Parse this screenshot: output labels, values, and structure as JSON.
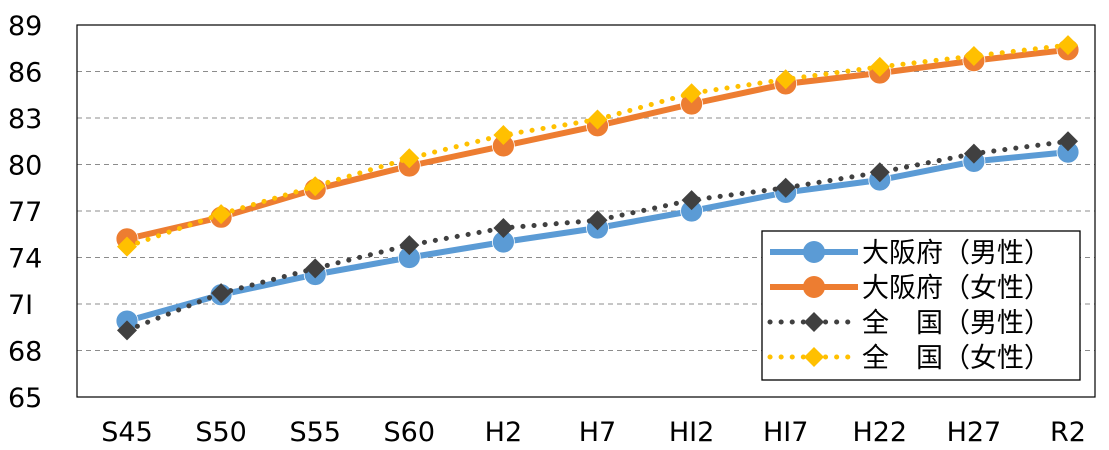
{
  "chart_data": {
    "type": "line",
    "categories": [
      "S45",
      "S50",
      "S55",
      "S60",
      "H2",
      "H7",
      "H12",
      "H17",
      "H22",
      "H27",
      "R2"
    ],
    "x_tick_labels": [
      "S45",
      "S50",
      "S55",
      "S60",
      "H2",
      "H7",
      "HI2",
      "HI7",
      "H22",
      "H27",
      "R2"
    ],
    "y_tick_labels": [
      "65",
      "68",
      "7I",
      "74",
      "77",
      "80",
      "83",
      "86",
      "89"
    ],
    "ylim": [
      65,
      89
    ],
    "y_ticks": [
      65,
      68,
      71,
      74,
      77,
      80,
      83,
      86,
      89
    ],
    "grid": true,
    "legend_position": "bottom-right",
    "title": "",
    "xlabel": "",
    "ylabel": "",
    "series": [
      {
        "name": "大阪府（男性）",
        "values": [
          69.9,
          71.6,
          72.9,
          74.0,
          75.0,
          75.9,
          77.0,
          78.2,
          79.0,
          80.2,
          80.8
        ],
        "color": "#5B9BD5",
        "line_style": "solid",
        "marker": "circle"
      },
      {
        "name": "大阪府（女性）",
        "values": [
          75.2,
          76.6,
          78.4,
          79.9,
          81.2,
          82.5,
          83.9,
          85.2,
          85.9,
          86.7,
          87.4
        ],
        "color": "#ED7D31",
        "line_style": "solid",
        "marker": "circle"
      },
      {
        "name": "全　国（男性）",
        "values": [
          69.3,
          71.7,
          73.3,
          74.8,
          75.9,
          76.4,
          77.7,
          78.5,
          79.5,
          80.7,
          81.5
        ],
        "color": "#404040",
        "line_style": "dotted",
        "marker": "diamond"
      },
      {
        "name": "全　国（女性）",
        "values": [
          74.7,
          76.8,
          78.6,
          80.4,
          81.9,
          82.9,
          84.6,
          85.5,
          86.3,
          87.0,
          87.7
        ],
        "color": "#FFC000",
        "line_style": "dotted",
        "marker": "diamond"
      }
    ]
  }
}
